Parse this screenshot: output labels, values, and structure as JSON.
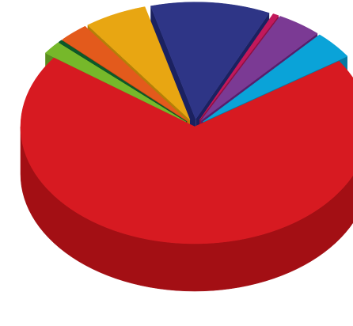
{
  "chart_data": {
    "type": "pie",
    "style": "3d-exploded",
    "title": "",
    "legend": "none",
    "slices": [
      {
        "value": 75.0,
        "color": "#d71a21",
        "side": "#a30f14"
      },
      {
        "value": 2.0,
        "color": "#76b82a",
        "side": "#5a8c1e"
      },
      {
        "value": 0.4,
        "color": "#0b5a2a",
        "side": "#073d1c"
      },
      {
        "value": 3.0,
        "color": "#e35a1c",
        "side": "#b04312"
      },
      {
        "value": 6.3,
        "color": "#e8a612",
        "side": "#b57f08"
      },
      {
        "value": 12.0,
        "color": "#2e3586",
        "side": "#1b2160"
      },
      {
        "value": 0.6,
        "color": "#c2185b",
        "side": "#8e0f42"
      },
      {
        "value": 4.5,
        "color": "#7b3a94",
        "side": "#561f6c"
      },
      {
        "value": 4.2,
        "color": "#0aa3d8",
        "side": "#0679a2"
      }
    ]
  }
}
